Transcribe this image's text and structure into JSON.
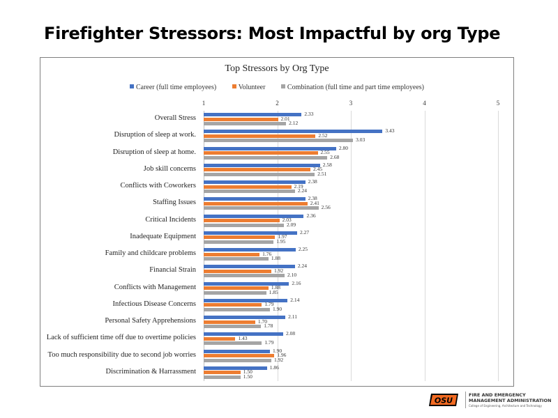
{
  "slide": {
    "title": "Firefighter Stressors: Most Impactful by org Type"
  },
  "footer": {
    "logo_mark": "OSU",
    "line1": "FIRE AND EMERGENCY",
    "line2": "MANAGEMENT ADMINISTRATION",
    "line3": "College of Engineering, Architecture and Technology"
  },
  "colors": {
    "career": "#4472c4",
    "volunteer": "#ed7d31",
    "combination": "#a5a5a5",
    "osu_orange": "#f26a21"
  },
  "chart_data": {
    "type": "bar",
    "orientation": "horizontal",
    "title": "Top Stressors by Org Type",
    "xlabel": "",
    "ylabel": "",
    "xlim": [
      1,
      5
    ],
    "xticks": [
      "1",
      "2",
      "3",
      "4",
      "5"
    ],
    "grid": true,
    "legend_position": "top",
    "categories": [
      "Overall Stress",
      "Disruption of sleep at work.",
      "Disruption of sleep at home.",
      "Job skill concerns",
      "Conflicts with Coworkers",
      "Staffing Issues",
      "Critical Incidents",
      "Inadequate Equipment",
      "Family and childcare problems",
      "Financial Strain",
      "Conflicts with Management",
      "Infectious Disease Concerns",
      "Personal Safety Apprehensions",
      "Lack of sufficient time off due to overtime policies",
      "Too much responsibility due to second job worries",
      "Discrimination & Harrassment"
    ],
    "series": [
      {
        "name": "Career (full time employees)",
        "color": "#4472c4",
        "values": [
          2.33,
          3.43,
          2.8,
          2.58,
          2.38,
          2.38,
          2.36,
          2.27,
          2.25,
          2.24,
          2.16,
          2.14,
          2.11,
          2.08,
          1.9,
          1.86
        ],
        "labels": [
          "2.33",
          "3.43",
          "2.80",
          "2.58",
          "2.38",
          "2.38",
          "2.36",
          "2.27",
          "2.25",
          "2.24",
          "2.16",
          "2.14",
          "2.11",
          "2.08",
          "1.90",
          "1.86"
        ]
      },
      {
        "name": "Volunteer",
        "color": "#ed7d31",
        "values": [
          2.01,
          2.52,
          2.55,
          2.45,
          2.19,
          2.41,
          2.03,
          1.97,
          1.76,
          1.92,
          1.88,
          1.79,
          1.7,
          1.43,
          1.96,
          1.5
        ],
        "labels": [
          "2.01",
          "2.52",
          "2.55",
          "2.45",
          "2.19",
          "2.41",
          "2.03",
          "1.97",
          "1.76",
          "1.92",
          "1.88",
          "1.79",
          "1.70",
          "1.43",
          "1.96",
          "1.50"
        ]
      },
      {
        "name": "Combination (full time and part time employees)",
        "color": "#a5a5a5",
        "values": [
          2.12,
          3.03,
          2.68,
          2.51,
          2.24,
          2.56,
          2.09,
          1.95,
          1.88,
          2.1,
          1.85,
          1.9,
          1.78,
          1.79,
          1.92,
          1.5
        ],
        "labels": [
          "2.12",
          "3.03",
          "2.68",
          "2.51",
          "2.24",
          "2.56",
          "2.09",
          "1.95",
          "1.88",
          "2.10",
          "1.85",
          "1.90",
          "1.78",
          "1.79",
          "1.92",
          "1.50"
        ]
      }
    ]
  }
}
